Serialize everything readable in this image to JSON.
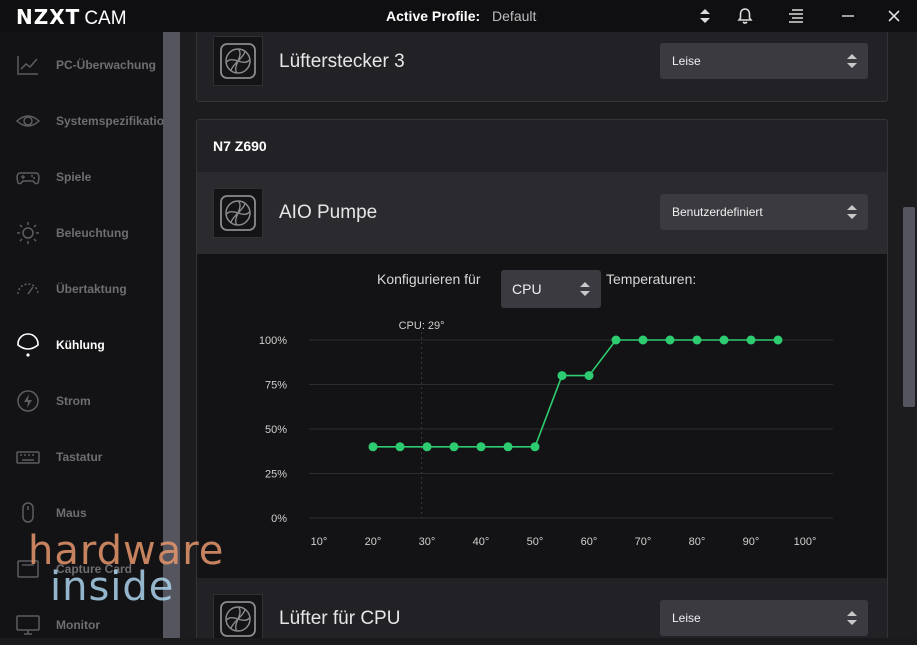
{
  "app": {
    "logo_main": "NZXT",
    "logo_sub": "CAM"
  },
  "header": {
    "profile_label": "Active Profile:",
    "profile_value": "Default"
  },
  "sidebar": {
    "items": [
      {
        "label": "PC-Überwachung",
        "icon": "chart-line-icon"
      },
      {
        "label": "Systemspezifikation",
        "icon": "eye-icon"
      },
      {
        "label": "Spiele",
        "icon": "gamepad-icon"
      },
      {
        "label": "Beleuchtung",
        "icon": "sun-icon"
      },
      {
        "label": "Übertaktung",
        "icon": "speedometer-icon"
      },
      {
        "label": "Kühlung",
        "icon": "cooling-icon",
        "active": true
      },
      {
        "label": "Strom",
        "icon": "lightning-icon"
      },
      {
        "label": "Tastatur",
        "icon": "keyboard-icon"
      },
      {
        "label": "Maus",
        "icon": "mouse-icon"
      },
      {
        "label": "Capture Card",
        "icon": "capture-card-icon"
      },
      {
        "label": "Monitor",
        "icon": "monitor-icon"
      }
    ]
  },
  "main": {
    "top_fan": {
      "name": "Lüfterstecker 3",
      "mode": "Leise"
    },
    "motherboard": "N7 Z690",
    "aio": {
      "name": "AIO Pumpe",
      "mode": "Benutzerdefiniert"
    },
    "configure": {
      "prefix": "Konfigurieren für",
      "source": "CPU",
      "suffix": "Temperaturen:"
    },
    "cpu_fan": {
      "name": "Lüfter für CPU",
      "mode": "Leise"
    }
  },
  "watermark": {
    "line1": "hardware",
    "line2": "inside"
  },
  "colors": {
    "accent": "#2ecc71",
    "background": "#1c1c1f",
    "sidebar": "#131315"
  },
  "chart_data": {
    "type": "line",
    "current_marker": {
      "label": "CPU: 29°",
      "x": 29
    },
    "x_ticks": [
      "10°",
      "20°",
      "30°",
      "40°",
      "50°",
      "60°",
      "70°",
      "80°",
      "90°",
      "100°"
    ],
    "y_ticks": [
      "0%",
      "25%",
      "50%",
      "75%",
      "100%"
    ],
    "xlim": [
      10,
      100
    ],
    "ylim": [
      0,
      100
    ],
    "grid": true,
    "series": [
      {
        "x": [
          20,
          25,
          30,
          35,
          40,
          45,
          50,
          55,
          60,
          65,
          70,
          75,
          80,
          85,
          90,
          95
        ],
        "y": [
          40,
          40,
          40,
          40,
          40,
          40,
          40,
          80,
          80,
          100,
          100,
          100,
          100,
          100,
          100,
          100
        ]
      }
    ]
  }
}
